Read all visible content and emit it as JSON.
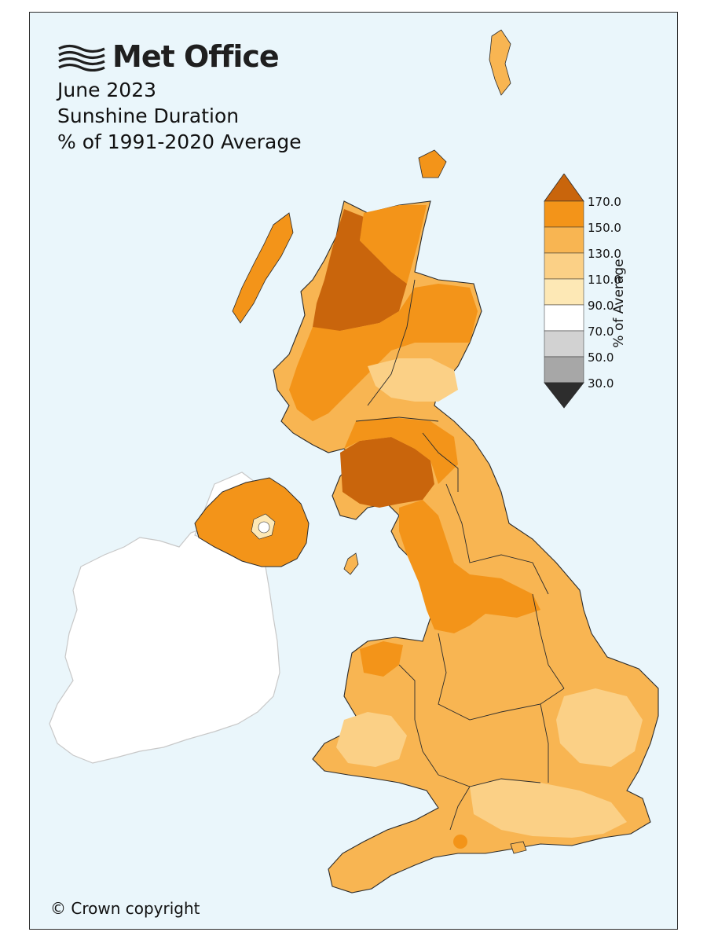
{
  "logo": {
    "text": "Met Office",
    "icon": "wave-lines-icon"
  },
  "title": {
    "line1": "June 2023",
    "line2": "Sunshine Duration",
    "line3": "% of 1991-2020 Average"
  },
  "copyright": "© Crown copyright",
  "legend": {
    "axis_label": "% of Average",
    "ticks": [
      "170.0",
      "150.0",
      "130.0",
      "110.0",
      "90.0",
      "70.0",
      "50.0",
      "30.0"
    ],
    "colors": [
      "#c9650c",
      "#f39419",
      "#f8b552",
      "#fbd086",
      "#fde8b5",
      "#ffffff",
      "#d2d2d2",
      "#a7a7a7",
      "#7d7d7d",
      "#555555",
      "#2d2d2d"
    ]
  },
  "colors": {
    "ocean": "#eaf6fb",
    "ireland": "#ffffff",
    "darkest": "#c9650c",
    "dark": "#f39419",
    "mid": "#f8b552",
    "light": "#fbd086",
    "palest": "#fde8b5"
  }
}
